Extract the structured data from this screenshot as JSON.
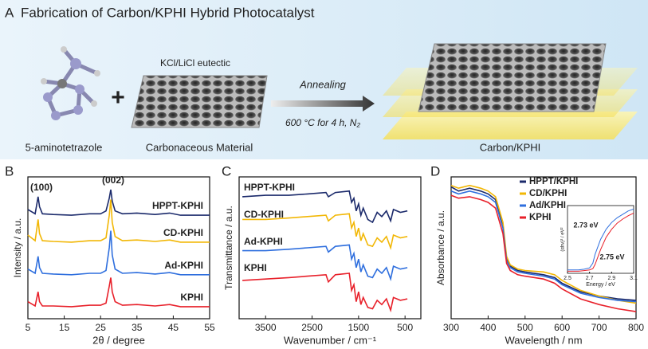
{
  "schematic": {
    "panel_label": "A",
    "title": "Fabrication of Carbon/KPHI Hybrid Photocatalyst",
    "salt": "KCl/LiCl eutectic",
    "step": "Annealing",
    "conditions": "600 °C  for 4 h, N₂",
    "precursor": "5-aminotetrazole",
    "template": "Carbonaceous Material",
    "product": "Carbon/KPHI"
  },
  "chart_data": [
    {
      "type": "line",
      "panel_label": "B",
      "xlabel": "2θ / degree",
      "ylabel": "Intensity / a.u.",
      "annotations": [
        "(100)",
        "(002)"
      ],
      "xlim": [
        5,
        55
      ],
      "xticks": [
        5,
        15,
        25,
        35,
        45,
        55
      ],
      "ylim": [
        0,
        10
      ],
      "x": [
        5,
        7,
        7.8,
        8.2,
        9,
        12,
        17,
        22,
        25,
        26.5,
        27.4,
        27.8,
        28.2,
        29,
        31,
        35,
        40,
        44,
        47,
        55
      ],
      "series": [
        {
          "name": "HPPT-KPHI",
          "color": "#1b2a6b",
          "values": [
            7.7,
            7.4,
            8.6,
            7.9,
            7.4,
            7.35,
            7.3,
            7.4,
            7.4,
            7.6,
            8.5,
            9.1,
            8.3,
            7.6,
            7.4,
            7.45,
            7.35,
            7.45,
            7.3,
            7.3
          ]
        },
        {
          "name": "CD-KPHI",
          "color": "#f2b705",
          "values": [
            5.9,
            5.5,
            7.0,
            6.0,
            5.5,
            5.45,
            5.4,
            5.5,
            5.5,
            5.7,
            7.3,
            8.4,
            6.8,
            5.8,
            5.5,
            5.55,
            5.45,
            5.55,
            5.4,
            5.4
          ]
        },
        {
          "name": "Ad-KPHI",
          "color": "#2f6fde",
          "values": [
            3.5,
            3.2,
            4.4,
            3.6,
            3.2,
            3.15,
            3.1,
            3.2,
            3.2,
            3.4,
            5.0,
            6.2,
            4.5,
            3.5,
            3.2,
            3.25,
            3.15,
            3.25,
            3.1,
            3.1
          ]
        },
        {
          "name": "KPHI",
          "color": "#e8202a",
          "values": [
            1.2,
            0.9,
            1.9,
            1.2,
            0.9,
            0.9,
            0.85,
            0.95,
            0.95,
            1.1,
            2.3,
            2.9,
            1.9,
            1.2,
            0.95,
            1.0,
            0.9,
            1.0,
            0.85,
            0.85
          ]
        }
      ]
    },
    {
      "type": "line",
      "panel_label": "C",
      "xlabel": "Wavenumber / cm⁻¹",
      "ylabel": "Transmittance / a.u.",
      "xlim": [
        4070,
        160
      ],
      "xticks": [
        3500,
        2500,
        1500,
        500
      ],
      "ylim": [
        0,
        10
      ],
      "x": [
        4000,
        3500,
        3000,
        2600,
        2200,
        2150,
        2000,
        1700,
        1650,
        1600,
        1550,
        1500,
        1450,
        1400,
        1300,
        1200,
        1100,
        1000,
        900,
        810,
        750,
        600,
        450
      ],
      "series": [
        {
          "name": "HPPT-KPHI",
          "color": "#1b2a6b",
          "values": [
            8.6,
            8.7,
            8.7,
            8.8,
            8.9,
            8.6,
            8.9,
            9.0,
            8.2,
            8.5,
            7.6,
            8.1,
            7.3,
            7.8,
            7.0,
            6.8,
            7.5,
            7.2,
            7.6,
            6.9,
            7.7,
            7.5,
            7.6
          ]
        },
        {
          "name": "CD-KPHI",
          "color": "#f2b705",
          "values": [
            7.0,
            7.0,
            7.1,
            7.2,
            7.3,
            6.9,
            7.3,
            7.4,
            6.4,
            6.8,
            5.8,
            6.4,
            5.5,
            6.0,
            5.2,
            5.1,
            5.7,
            5.4,
            5.8,
            5.0,
            5.9,
            5.7,
            5.8
          ]
        },
        {
          "name": "Ad-KPHI",
          "color": "#2f6fde",
          "values": [
            4.8,
            4.8,
            4.9,
            5.0,
            5.1,
            4.7,
            5.1,
            5.2,
            4.2,
            4.6,
            3.6,
            4.2,
            3.3,
            3.8,
            3.0,
            2.9,
            3.5,
            3.2,
            3.6,
            2.8,
            3.7,
            3.5,
            3.6
          ]
        },
        {
          "name": "KPHI",
          "color": "#e8202a",
          "values": [
            2.7,
            2.8,
            2.9,
            3.0,
            3.1,
            2.6,
            3.1,
            3.2,
            2.0,
            2.4,
            1.2,
            1.9,
            1.0,
            1.5,
            0.8,
            0.7,
            1.3,
            1.0,
            1.4,
            0.6,
            1.5,
            1.3,
            1.4
          ]
        }
      ]
    },
    {
      "type": "line",
      "panel_label": "D",
      "xlabel": "Wavelength / nm",
      "ylabel": "Absorbance / a.u.",
      "xlim": [
        300,
        800
      ],
      "xticks": [
        300,
        400,
        500,
        600,
        700,
        800
      ],
      "ylim": [
        0,
        10
      ],
      "legend": "top-right",
      "x": [
        300,
        320,
        350,
        380,
        400,
        420,
        440,
        450,
        460,
        480,
        500,
        550,
        580,
        600,
        650,
        700,
        750,
        800
      ],
      "series": [
        {
          "name": "HPPT/KPHI",
          "color": "#1b2a6b",
          "values": [
            9.3,
            9.0,
            9.2,
            9.0,
            8.8,
            8.4,
            6.5,
            4.2,
            3.7,
            3.4,
            3.3,
            3.1,
            2.9,
            2.5,
            1.9,
            1.6,
            1.4,
            1.3
          ]
        },
        {
          "name": "CD/KPHI",
          "color": "#f2b705",
          "values": [
            9.4,
            9.2,
            9.4,
            9.2,
            9.0,
            8.6,
            6.8,
            4.4,
            3.8,
            3.5,
            3.4,
            3.3,
            3.1,
            2.7,
            2.0,
            1.6,
            1.3,
            1.1
          ]
        },
        {
          "name": "Ad/KPHI",
          "color": "#2f6fde",
          "values": [
            9.0,
            8.8,
            9.0,
            8.8,
            8.6,
            8.2,
            6.4,
            4.1,
            3.6,
            3.3,
            3.2,
            3.0,
            2.8,
            2.4,
            1.8,
            1.5,
            1.3,
            1.2
          ]
        },
        {
          "name": "KPHI",
          "color": "#e8202a",
          "values": [
            8.7,
            8.5,
            8.6,
            8.4,
            8.2,
            7.8,
            6.0,
            3.9,
            3.4,
            3.1,
            3.0,
            2.8,
            2.5,
            2.1,
            1.4,
            1.0,
            0.7,
            0.5
          ]
        }
      ]
    },
    {
      "type": "line",
      "xlabel": "Energy / eV",
      "ylabel": "(αhν)² / eV²",
      "annotations": [
        "2.73 eV",
        "2.75 eV"
      ],
      "xlim": [
        2.5,
        3.1
      ],
      "xticks": [
        2.5,
        2.7,
        2.9,
        3.1
      ],
      "ylim": [
        0,
        10
      ],
      "x": [
        2.5,
        2.6,
        2.65,
        2.7,
        2.73,
        2.75,
        2.8,
        2.85,
        2.9,
        2.95,
        3.0,
        3.05,
        3.1
      ],
      "series": [
        {
          "name": "Ad/KPHI",
          "color": "#2f6fde",
          "values": [
            0.5,
            0.5,
            0.6,
            0.8,
            1.5,
            2.8,
            5.0,
            6.5,
            7.5,
            8.2,
            8.7,
            9.2,
            9.5
          ]
        },
        {
          "name": "KPHI",
          "color": "#e8202a",
          "values": [
            0.3,
            0.3,
            0.4,
            0.5,
            0.7,
            1.3,
            3.5,
            5.3,
            6.5,
            7.4,
            8.0,
            8.5,
            8.9
          ]
        }
      ]
    }
  ]
}
